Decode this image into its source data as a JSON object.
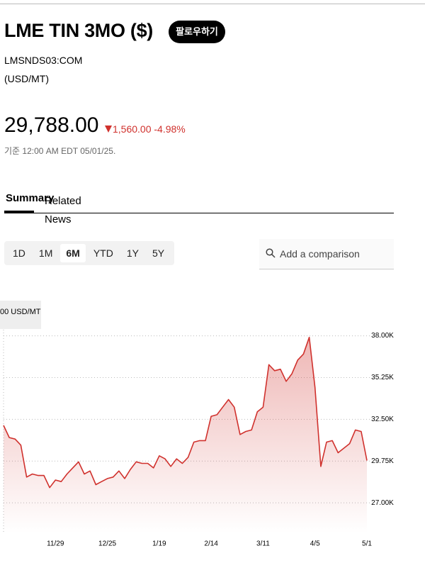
{
  "header": {
    "title": "LME TIN 3MO ($)",
    "follow": "팔로우하기",
    "ticker": "LMSNDS03:COM",
    "unit": "(USD/MT)",
    "price": "29,788.00",
    "change": "1,560.00",
    "change_pct": "-4.98%",
    "timestamp": "기준 12:00 AM EDT 05/01/25."
  },
  "tabs": [
    "Summary",
    "Related News"
  ],
  "ranges": [
    "1D",
    "1M",
    "6M",
    "YTD",
    "1Y",
    "5Y"
  ],
  "active_range": "6M",
  "search": "Add a comparison",
  "chart_data": {
    "type": "line",
    "annotation": "00 USD/MT",
    "categories": [
      null,
      null,
      null,
      null,
      null,
      null,
      null,
      null,
      null,
      "11/29",
      null,
      null,
      null,
      null,
      null,
      null,
      null,
      null,
      "12/25",
      null,
      null,
      null,
      null,
      null,
      null,
      null,
      null,
      "1/19",
      null,
      null,
      null,
      null,
      null,
      null,
      null,
      null,
      "2/14",
      null,
      null,
      null,
      null,
      null,
      null,
      null,
      null,
      "3/11",
      null,
      null,
      null,
      null,
      null,
      null,
      null,
      null,
      "4/5",
      null,
      null,
      null,
      null,
      null,
      null,
      null,
      null,
      "5/1"
    ],
    "series": [
      {
        "name": "LME TIN 3MO ($)",
        "color": "#d0312d",
        "values": [
          32100,
          31300,
          31200,
          30800,
          28700,
          28900,
          28800,
          28800,
          28000,
          28500,
          28400,
          28900,
          29300,
          29700,
          28900,
          29100,
          28200,
          28400,
          28600,
          28700,
          29100,
          28600,
          29200,
          29700,
          29600,
          29600,
          29300,
          30100,
          29900,
          29400,
          29900,
          29600,
          30000,
          31000,
          31100,
          31100,
          32700,
          32800,
          33300,
          33800,
          33300,
          31500,
          31700,
          31800,
          33000,
          33300,
          36100,
          35700,
          35800,
          35000,
          35500,
          36400,
          36800,
          37900,
          34600,
          29400,
          31000,
          31100,
          30300,
          30600,
          30900,
          31800,
          31700,
          29788
        ]
      }
    ],
    "ylim": [
      25000,
      38400
    ],
    "yticks": [
      {
        "value": 27000,
        "label": "27.00K"
      },
      {
        "value": 29750,
        "label": "29.75K"
      },
      {
        "value": 32500,
        "label": "32.50K"
      },
      {
        "value": 35250,
        "label": "35.25K"
      },
      {
        "value": 38000,
        "label": "38.00K"
      }
    ],
    "grid": true
  }
}
